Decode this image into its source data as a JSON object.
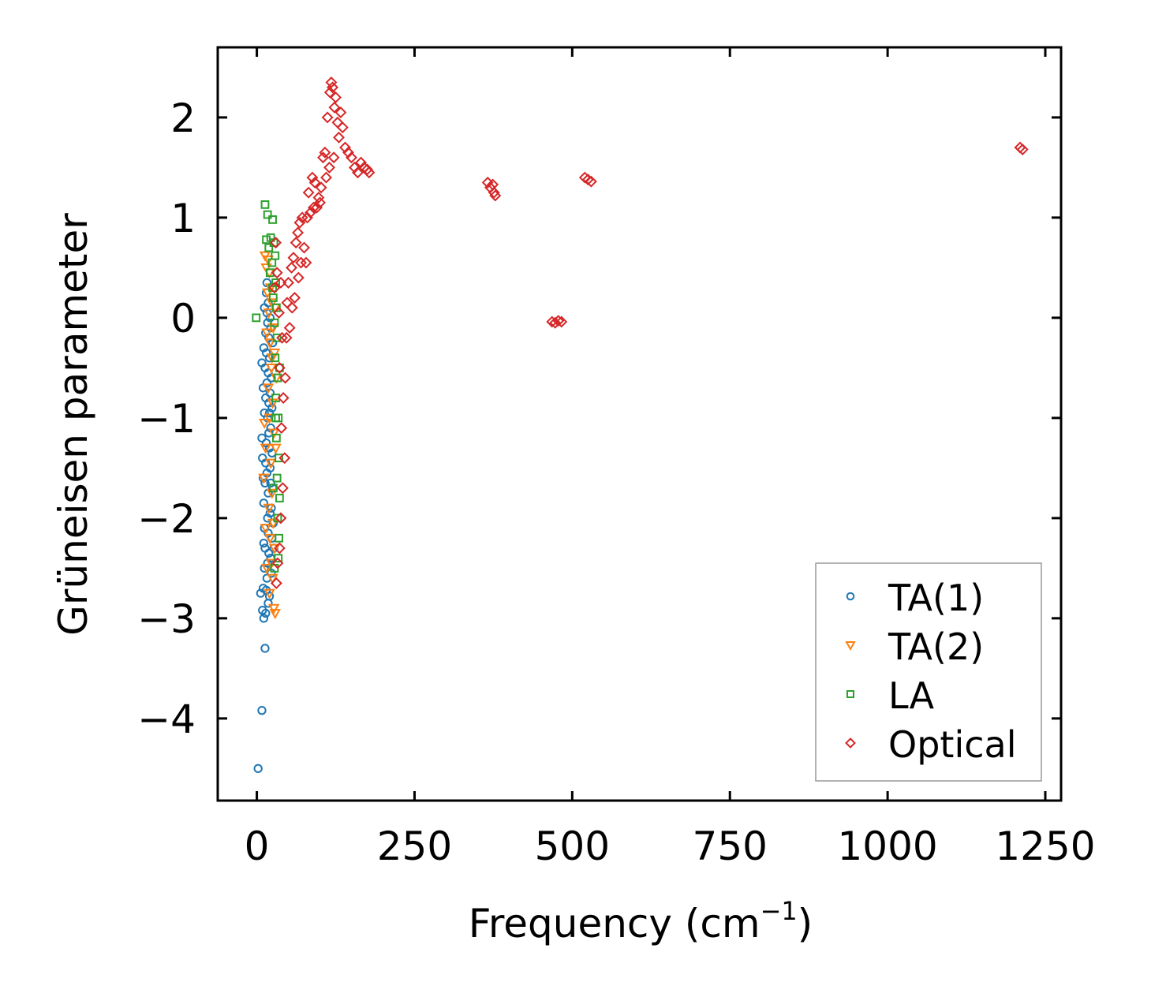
{
  "chart_data": {
    "type": "scatter",
    "title": "",
    "xlabel": "Frequency (cm",
    "xlabel_sup": "−1",
    "xlabel_close": ")",
    "ylabel": "Grüneisen parameter",
    "xlim": [
      -62,
      1275
    ],
    "ylim": [
      -4.82,
      2.7
    ],
    "xticks": [
      0,
      250,
      500,
      750,
      1000,
      1250
    ],
    "yticks": [
      -4,
      -3,
      -2,
      -1,
      0,
      1,
      2
    ],
    "xtick_labels": [
      "0",
      "250",
      "500",
      "750",
      "1000",
      "1250"
    ],
    "ytick_labels": [
      "−4",
      "−3",
      "−2",
      "−1",
      "0",
      "1",
      "2"
    ],
    "legend_position": "lower-right",
    "series": [
      {
        "name": "TA(1)",
        "marker": "circle",
        "color": "#1f77b4",
        "points": [
          [
            2,
            -4.5
          ],
          [
            8,
            -3.92
          ],
          [
            13,
            -3.3
          ],
          [
            11,
            -3.0
          ],
          [
            9,
            -2.92
          ],
          [
            14,
            -2.95
          ],
          [
            6,
            -2.75
          ],
          [
            18,
            -2.85
          ],
          [
            10,
            -2.7
          ],
          [
            15,
            -2.72
          ],
          [
            20,
            -2.78
          ],
          [
            12,
            -2.5
          ],
          [
            16,
            -2.6
          ],
          [
            22,
            -2.4
          ],
          [
            13,
            -2.3
          ],
          [
            19,
            -2.35
          ],
          [
            24,
            -2.2
          ],
          [
            12,
            -2.1
          ],
          [
            17,
            -2.0
          ],
          [
            23,
            -1.9
          ],
          [
            11,
            -1.85
          ],
          [
            18,
            -1.75
          ],
          [
            25,
            -1.7
          ],
          [
            10,
            -1.6
          ],
          [
            16,
            -1.55
          ],
          [
            21,
            -1.5
          ],
          [
            14,
            -1.45
          ],
          [
            9,
            -1.4
          ],
          [
            20,
            -1.3
          ],
          [
            15,
            -1.25
          ],
          [
            8,
            -1.2
          ],
          [
            22,
            -1.1
          ],
          [
            17,
            -1.0
          ],
          [
            12,
            -0.95
          ],
          [
            24,
            -0.9
          ],
          [
            19,
            -0.85
          ],
          [
            14,
            -0.8
          ],
          [
            21,
            -0.75
          ],
          [
            10,
            -0.7
          ],
          [
            16,
            -0.65
          ],
          [
            23,
            -0.6
          ],
          [
            18,
            -0.55
          ],
          [
            13,
            -0.5
          ],
          [
            8,
            -0.45
          ],
          [
            20,
            -0.4
          ],
          [
            15,
            -0.35
          ],
          [
            11,
            -0.3
          ],
          [
            25,
            -0.25
          ],
          [
            19,
            -0.2
          ],
          [
            14,
            -0.15
          ],
          [
            22,
            -0.1
          ],
          [
            17,
            -0.05
          ],
          [
            21,
            0.0
          ],
          [
            16,
            0.05
          ],
          [
            12,
            0.1
          ],
          [
            18,
            0.15
          ],
          [
            15,
            0.25
          ],
          [
            16,
            0.35
          ],
          [
            24,
            -1.35
          ],
          [
            26,
            -2.05
          ],
          [
            27,
            -2.3
          ],
          [
            19,
            -1.15
          ],
          [
            13,
            -1.65
          ],
          [
            11,
            -2.25
          ],
          [
            21,
            -1.95
          ],
          [
            23,
            -2.55
          ],
          [
            17,
            -2.45
          ],
          [
            20,
            -0.95
          ],
          [
            22,
            -1.65
          ],
          [
            18,
            -2.15
          ]
        ]
      },
      {
        "name": "TA(2)",
        "marker": "triangle-down",
        "color": "#ff7f0e",
        "points": [
          [
            13,
            0.62
          ],
          [
            18,
            0.58
          ],
          [
            15,
            0.5
          ],
          [
            20,
            0.45
          ],
          [
            22,
            0.3
          ],
          [
            17,
            0.25
          ],
          [
            24,
            0.15
          ],
          [
            19,
            0.05
          ],
          [
            26,
            -0.1
          ],
          [
            21,
            -0.25
          ],
          [
            28,
            -0.35
          ],
          [
            23,
            -0.5
          ],
          [
            18,
            -0.7
          ],
          [
            25,
            -0.85
          ],
          [
            20,
            -1.0
          ],
          [
            27,
            -1.15
          ],
          [
            14,
            -1.3
          ],
          [
            22,
            -1.45
          ],
          [
            11,
            -1.6
          ],
          [
            24,
            -1.75
          ],
          [
            19,
            -1.9
          ],
          [
            26,
            -2.05
          ],
          [
            21,
            -2.2
          ],
          [
            28,
            -2.3
          ],
          [
            23,
            -2.45
          ],
          [
            25,
            -2.6
          ],
          [
            20,
            -2.75
          ],
          [
            27,
            -2.9
          ],
          [
            29,
            -2.95
          ],
          [
            16,
            -2.5
          ],
          [
            12,
            -1.05
          ],
          [
            30,
            -1.3
          ],
          [
            31,
            -0.6
          ],
          [
            29,
            0.1
          ],
          [
            16,
            -0.15
          ],
          [
            14,
            -2.1
          ],
          [
            24,
            -0.4
          ]
        ]
      },
      {
        "name": "LA",
        "marker": "square",
        "color": "#2ca02c",
        "points": [
          [
            13,
            1.13
          ],
          [
            17,
            1.03
          ],
          [
            25,
            0.98
          ],
          [
            15,
            0.78
          ],
          [
            22,
            0.8
          ],
          [
            27,
            0.75
          ],
          [
            19,
            0.7
          ],
          [
            29,
            0.62
          ],
          [
            24,
            0.55
          ],
          [
            21,
            0.45
          ],
          [
            30,
            0.35
          ],
          [
            26,
            0.2
          ],
          [
            31,
            0.1
          ],
          [
            28,
            -0.05
          ],
          [
            -1,
            0.0
          ],
          [
            32,
            -0.2
          ],
          [
            29,
            -0.4
          ],
          [
            33,
            -0.6
          ],
          [
            30,
            -0.8
          ],
          [
            34,
            -1.0
          ],
          [
            31,
            -1.2
          ],
          [
            35,
            -1.4
          ],
          [
            32,
            -1.6
          ],
          [
            36,
            -1.8
          ],
          [
            33,
            -2.0
          ],
          [
            35,
            -2.2
          ],
          [
            34,
            -2.4
          ],
          [
            28,
            -2.5
          ],
          [
            26,
            -1.7
          ],
          [
            30,
            -1.0
          ],
          [
            36,
            -0.5
          ],
          [
            25,
            0.3
          ]
        ]
      },
      {
        "name": "Optical",
        "marker": "diamond",
        "color": "#d62728",
        "points": [
          [
            30,
            0.75
          ],
          [
            32,
            0.45
          ],
          [
            28,
            0.3
          ],
          [
            38,
            0.35
          ],
          [
            35,
            0.05
          ],
          [
            40,
            -0.2
          ],
          [
            36,
            -0.5
          ],
          [
            42,
            -0.8
          ],
          [
            39,
            -1.1
          ],
          [
            44,
            -1.4
          ],
          [
            41,
            -1.7
          ],
          [
            38,
            -2.0
          ],
          [
            36,
            -2.3
          ],
          [
            33,
            -2.45
          ],
          [
            31,
            -2.65
          ],
          [
            45,
            -0.6
          ],
          [
            47,
            -0.2
          ],
          [
            48,
            0.15
          ],
          [
            50,
            0.35
          ],
          [
            55,
            0.5
          ],
          [
            58,
            0.6
          ],
          [
            62,
            0.75
          ],
          [
            65,
            0.85
          ],
          [
            68,
            0.95
          ],
          [
            72,
            1.0
          ],
          [
            75,
            0.7
          ],
          [
            78,
            0.55
          ],
          [
            80,
            1.0
          ],
          [
            85,
            1.05
          ],
          [
            90,
            1.1
          ],
          [
            95,
            1.1
          ],
          [
            100,
            1.15
          ],
          [
            102,
            1.3
          ],
          [
            105,
            1.6
          ],
          [
            108,
            1.65
          ],
          [
            112,
            2.0
          ],
          [
            116,
            2.25
          ],
          [
            118,
            2.35
          ],
          [
            120,
            2.3
          ],
          [
            123,
            2.1
          ],
          [
            125,
            2.2
          ],
          [
            128,
            1.95
          ],
          [
            130,
            1.8
          ],
          [
            133,
            2.05
          ],
          [
            136,
            1.9
          ],
          [
            140,
            1.7
          ],
          [
            145,
            1.65
          ],
          [
            150,
            1.6
          ],
          [
            155,
            1.5
          ],
          [
            160,
            1.45
          ],
          [
            165,
            1.55
          ],
          [
            170,
            1.5
          ],
          [
            175,
            1.48
          ],
          [
            178,
            1.45
          ],
          [
            110,
            1.4
          ],
          [
            115,
            1.5
          ],
          [
            122,
            1.6
          ],
          [
            98,
            1.2
          ],
          [
            92,
            1.35
          ],
          [
            88,
            1.4
          ],
          [
            82,
            1.25
          ],
          [
            60,
            0.2
          ],
          [
            66,
            0.4
          ],
          [
            70,
            0.55
          ],
          [
            52,
            -0.1
          ],
          [
            56,
            0.1
          ],
          [
            366,
            1.35
          ],
          [
            370,
            1.3
          ],
          [
            374,
            1.33
          ],
          [
            376,
            1.25
          ],
          [
            378,
            1.22
          ],
          [
            468,
            -0.04
          ],
          [
            473,
            -0.05
          ],
          [
            478,
            -0.03
          ],
          [
            483,
            -0.04
          ],
          [
            520,
            1.4
          ],
          [
            525,
            1.38
          ],
          [
            530,
            1.36
          ],
          [
            1210,
            1.7
          ],
          [
            1214,
            1.68
          ]
        ]
      }
    ]
  }
}
